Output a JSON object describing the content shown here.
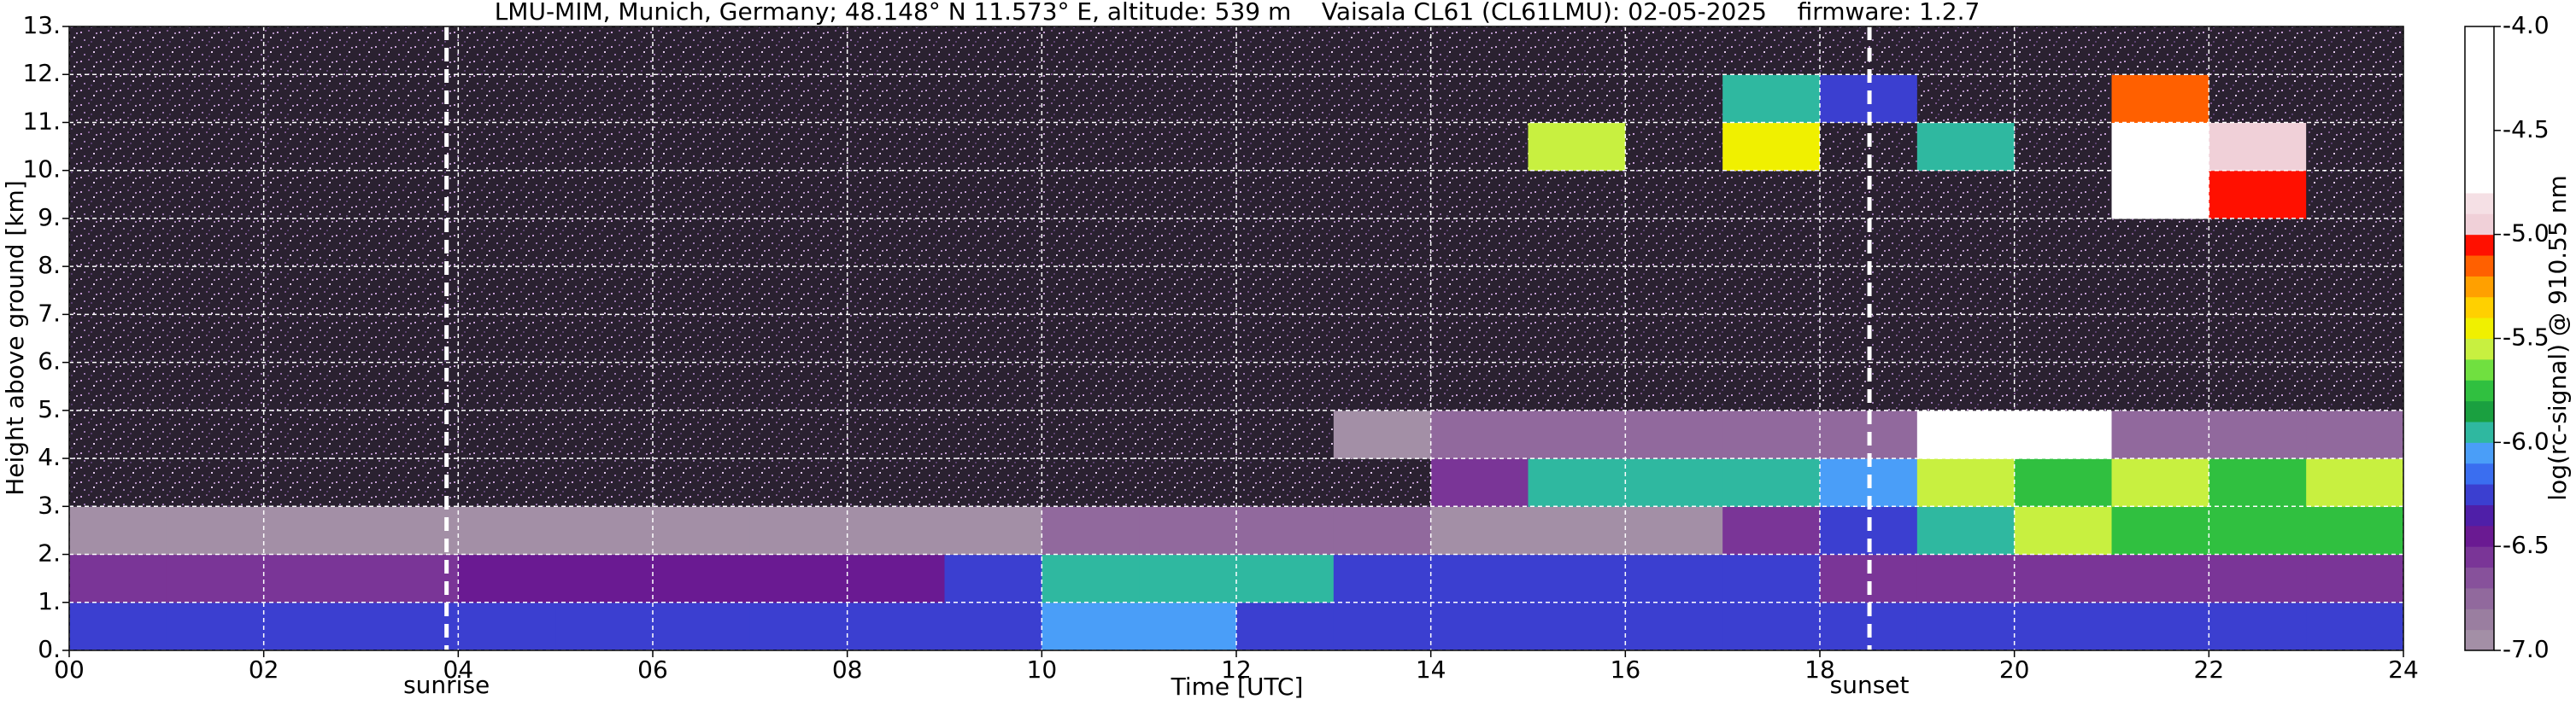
{
  "chart_data": {
    "type": "heatmap",
    "title": "LMU-MIM, Munich, Germany; 48.148° N 11.573° E, altitude: 539 m    Vaisala CL61 (CL61LMU): 02-05-2025    firmware: 1.2.7",
    "xlabel": "Time [UTC]",
    "ylabel": "Height above ground [km]",
    "xlim": [
      0,
      24
    ],
    "ylim": [
      0,
      13
    ],
    "xticks": [
      {
        "value": 0,
        "label": "00"
      },
      {
        "value": 2,
        "label": "02"
      },
      {
        "value": 4,
        "label": "04"
      },
      {
        "value": 6,
        "label": "06"
      },
      {
        "value": 8,
        "label": "08"
      },
      {
        "value": 10,
        "label": "10"
      },
      {
        "value": 12,
        "label": "12"
      },
      {
        "value": 14,
        "label": "14"
      },
      {
        "value": 16,
        "label": "16"
      },
      {
        "value": 18,
        "label": "18"
      },
      {
        "value": 20,
        "label": "20"
      },
      {
        "value": 22,
        "label": "22"
      },
      {
        "value": 24,
        "label": "24"
      }
    ],
    "yticks": [
      {
        "value": 0,
        "label": "0."
      },
      {
        "value": 1,
        "label": "1."
      },
      {
        "value": 2,
        "label": "2."
      },
      {
        "value": 3,
        "label": "3."
      },
      {
        "value": 4,
        "label": "4."
      },
      {
        "value": 5,
        "label": "5."
      },
      {
        "value": 6,
        "label": "6."
      },
      {
        "value": 7,
        "label": "7."
      },
      {
        "value": 8,
        "label": "8."
      },
      {
        "value": 9,
        "label": "9."
      },
      {
        "value": 10,
        "label": "10."
      },
      {
        "value": 11,
        "label": "11."
      },
      {
        "value": 12,
        "label": "12."
      },
      {
        "value": 13,
        "label": "13."
      }
    ],
    "grid": true,
    "x_bins": [
      0,
      1,
      2,
      3,
      4,
      5,
      6,
      7,
      8,
      9,
      10,
      11,
      12,
      13,
      14,
      15,
      16,
      17,
      18,
      19,
      20,
      21,
      22,
      23,
      24
    ],
    "y_bins": [
      0,
      1,
      2,
      3,
      4,
      5,
      6,
      7,
      8,
      9,
      10,
      11,
      12,
      13
    ],
    "z": [
      [
        -6.3,
        -6.3,
        -6.3,
        -6.3,
        -6.3,
        -6.3,
        -6.3,
        -6.3,
        -6.3,
        -6.3,
        -6.1,
        -6.1,
        -6.2,
        -6.2,
        -6.2,
        -6.2,
        -6.2,
        -6.2,
        -6.3,
        -6.2,
        -6.2,
        -6.2,
        -6.2,
        -6.2
      ],
      [
        -6.6,
        -6.6,
        -6.6,
        -6.6,
        -6.5,
        -6.5,
        -6.5,
        -6.5,
        -6.5,
        -6.3,
        -6.0,
        -6.0,
        -6.0,
        -6.2,
        -6.2,
        -6.2,
        -6.2,
        -6.2,
        -6.6,
        -6.6,
        -6.6,
        -6.6,
        -6.6,
        -6.6
      ],
      [
        -6.9,
        -6.9,
        -6.9,
        -6.9,
        -6.9,
        -6.9,
        -6.9,
        -6.9,
        -6.9,
        -6.9,
        -6.8,
        -6.8,
        -6.8,
        -6.8,
        -6.9,
        -6.9,
        -6.9,
        -6.6,
        -6.2,
        -5.9,
        -5.6,
        -5.7,
        -5.8,
        -5.8
      ],
      [
        -7.5,
        -7.5,
        -7.5,
        -7.5,
        -7.5,
        -7.5,
        -7.5,
        -7.5,
        -7.5,
        -7.5,
        -7.5,
        -7.5,
        -7.5,
        -7.5,
        -6.6,
        -6.0,
        -5.9,
        -5.9,
        -6.1,
        -5.6,
        -5.7,
        -5.6,
        -5.7,
        -5.6
      ],
      [
        -7.5,
        -7.5,
        -7.5,
        -7.5,
        -7.5,
        -7.5,
        -7.5,
        -7.5,
        -7.5,
        -7.5,
        -7.5,
        -7.5,
        -7.5,
        -6.9,
        -6.8,
        -6.8,
        -6.8,
        -6.8,
        -6.7,
        -4.4,
        -4.6,
        -6.7,
        -6.8,
        -6.8
      ],
      [
        -7.5,
        -7.5,
        -7.5,
        -7.5,
        -7.5,
        -7.5,
        -7.5,
        -7.5,
        -7.5,
        -7.5,
        -7.5,
        -7.5,
        -7.5,
        -7.5,
        -7.5,
        -7.5,
        -7.5,
        -7.5,
        -7.5,
        -7.5,
        -7.5,
        -7.5,
        -7.5,
        -7.5
      ],
      [
        -7.5,
        -7.5,
        -7.5,
        -7.5,
        -7.5,
        -7.5,
        -7.5,
        -7.5,
        -7.5,
        -7.5,
        -7.5,
        -7.5,
        -7.5,
        -7.5,
        -7.5,
        -7.5,
        -7.5,
        -7.5,
        -7.5,
        -7.5,
        -7.5,
        -7.5,
        -7.5,
        -7.5
      ],
      [
        -7.5,
        -7.5,
        -7.5,
        -7.5,
        -7.5,
        -7.5,
        -7.5,
        -7.5,
        -7.5,
        -7.5,
        -7.5,
        -7.5,
        -7.5,
        -7.5,
        -7.5,
        -7.5,
        -7.5,
        -7.5,
        -7.5,
        -7.5,
        -7.5,
        -7.5,
        -7.5,
        -7.5
      ],
      [
        -7.5,
        -7.5,
        -7.5,
        -7.5,
        -7.5,
        -7.5,
        -7.5,
        -7.5,
        -7.5,
        -7.5,
        -7.5,
        -7.5,
        -7.5,
        -7.5,
        -7.5,
        -7.5,
        -7.5,
        -7.5,
        -7.5,
        -7.5,
        -7.5,
        -7.5,
        -7.5,
        -7.5
      ],
      [
        -7.5,
        -7.5,
        -7.5,
        -7.5,
        -7.5,
        -7.5,
        -7.5,
        -7.5,
        -7.5,
        -7.5,
        -7.5,
        -7.5,
        -7.5,
        -7.5,
        -7.5,
        -7.5,
        -7.5,
        -7.5,
        -7.5,
        -7.5,
        -7.5,
        -4.4,
        -5.1,
        -7.5
      ],
      [
        -7.5,
        -7.5,
        -7.5,
        -7.5,
        -7.5,
        -7.5,
        -7.5,
        -7.5,
        -7.5,
        -7.5,
        -7.5,
        -7.5,
        -7.5,
        -7.5,
        -7.5,
        -5.6,
        -7.5,
        -5.5,
        -7.5,
        -6.0,
        -7.5,
        -4.3,
        -5.0,
        -7.5
      ],
      [
        -7.5,
        -7.5,
        -7.5,
        -7.5,
        -7.5,
        -7.5,
        -7.5,
        -7.5,
        -7.5,
        -7.5,
        -7.5,
        -7.5,
        -7.5,
        -7.5,
        -7.5,
        -7.5,
        -7.5,
        -6.0,
        -6.3,
        -7.5,
        -7.5,
        -5.2,
        -7.5,
        -7.5
      ],
      [
        -7.5,
        -7.5,
        -7.5,
        -7.5,
        -7.5,
        -7.5,
        -7.5,
        -7.5,
        -7.5,
        -7.5,
        -7.5,
        -7.5,
        -7.5,
        -7.5,
        -7.5,
        -7.5,
        -7.5,
        -7.5,
        -7.5,
        -7.5,
        -7.5,
        -7.5,
        -7.5,
        -7.5
      ]
    ],
    "annotations": [
      {
        "text": "sunrise",
        "x": 3.88
      },
      {
        "text": "sunset",
        "x": 18.51
      }
    ],
    "colorbar": {
      "label": "log(rc-signal) @ 910.55 nm",
      "lim": [
        -7,
        -4
      ],
      "ticks": [
        {
          "value": -4,
          "label": "-4.0"
        },
        {
          "value": -4.5,
          "label": "-4.5"
        },
        {
          "value": -5,
          "label": "-5.0"
        },
        {
          "value": -5.5,
          "label": "-5.5"
        },
        {
          "value": -6,
          "label": "-6.0"
        },
        {
          "value": -6.5,
          "label": "-6.5"
        },
        {
          "value": -7,
          "label": "-7.0"
        }
      ],
      "under_color": "#2a2130",
      "colors": [
        "#a38fa6",
        "#9a7ea0",
        "#91699d",
        "#87519b",
        "#7a3597",
        "#6a1a92",
        "#4f1fa8",
        "#3b3fd0",
        "#3a6ef0",
        "#4a9ef8",
        "#2fb8a0",
        "#1aa040",
        "#30c040",
        "#70e040",
        "#c8f040",
        "#f0f000",
        "#ffd000",
        "#ffa000",
        "#ff6000",
        "#ff1000",
        "#f0d0d8",
        "#f5e0e5",
        "#ffffff",
        "#ffffff",
        "#ffffff",
        "#ffffff",
        "#ffffff",
        "#ffffff",
        "#ffffff",
        "#ffffff"
      ]
    }
  }
}
